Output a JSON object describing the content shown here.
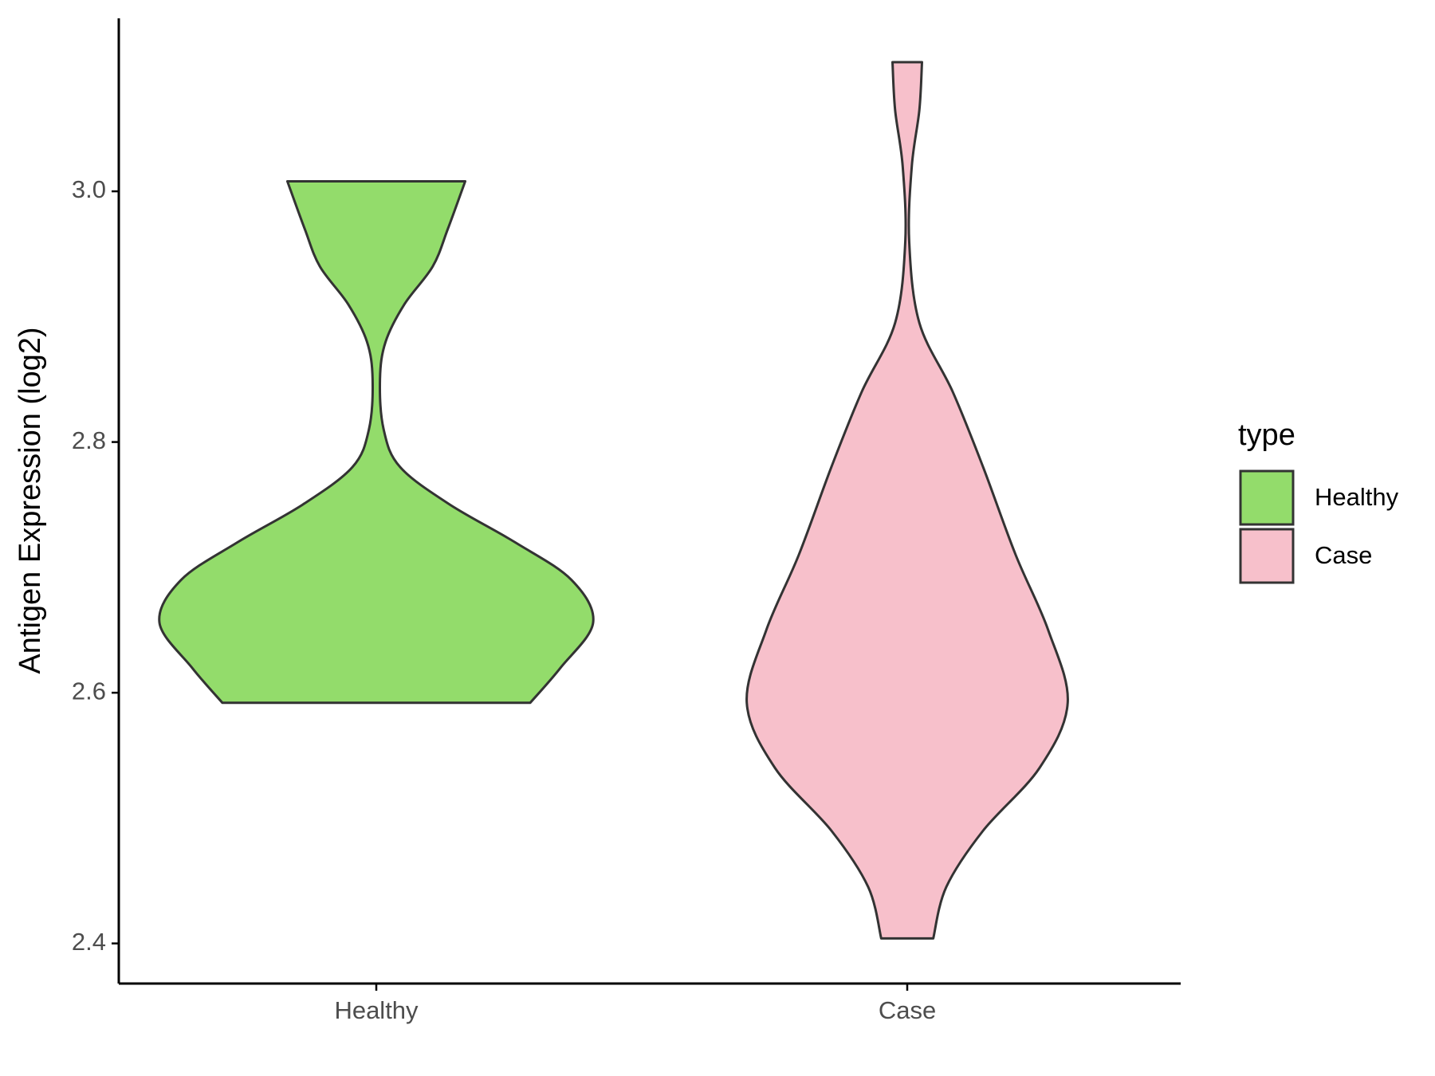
{
  "chart_data": {
    "type": "violin",
    "y_label": "Antigen Expression (log2)",
    "categories": [
      "Healthy",
      "Case"
    ],
    "legend_title": "type",
    "legend": "right",
    "ylim": [
      2.368,
      3.138
    ],
    "yticks": [
      2.4,
      2.6,
      2.8,
      {
        "value": 3,
        "label": "3.0"
      }
    ],
    "series": [
      {
        "name": "Healthy",
        "color": "#93dc6b",
        "y": [
          2.592,
          2.62,
          2.656,
          2.69,
          2.72,
          2.75,
          2.78,
          2.81,
          2.85,
          2.88,
          2.91,
          2.94,
          2.97,
          3.008
        ],
        "density": [
          0.71,
          0.85,
          1.0,
          0.9,
          0.64,
          0.34,
          0.11,
          0.034,
          0.017,
          0.043,
          0.13,
          0.26,
          0.33,
          0.41
        ]
      },
      {
        "name": "Case",
        "color": "#f7c0cb",
        "y": [
          2.404,
          2.445,
          2.49,
          2.54,
          2.592,
          2.65,
          2.71,
          2.78,
          2.84,
          2.895,
          2.96,
          3.02,
          3.065,
          3.103
        ],
        "density": [
          0.12,
          0.18,
          0.35,
          0.61,
          0.74,
          0.65,
          0.5,
          0.35,
          0.21,
          0.056,
          0.009,
          0.021,
          0.056,
          0.068
        ]
      }
    ]
  }
}
